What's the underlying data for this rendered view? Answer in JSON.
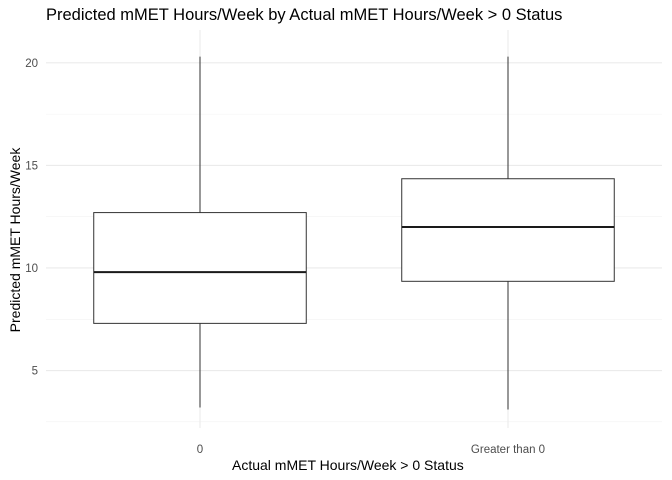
{
  "chart_data": {
    "type": "box",
    "title": "Predicted mMET Hours/Week by Actual mMET Hours/Week > 0 Status",
    "xlabel": "Actual mMET Hours/Week > 0 Status",
    "ylabel": "Predicted mMET Hours/Week",
    "categories": [
      "0",
      "Greater than 0"
    ],
    "y_ticks": [
      5,
      10,
      15,
      20
    ],
    "ylim": [
      2.2,
      21.6
    ],
    "grid": true,
    "boxes": [
      {
        "category": "0",
        "min": 3.2,
        "q1": 7.3,
        "median": 9.8,
        "q3": 12.7,
        "max": 20.3
      },
      {
        "category": "Greater than 0",
        "min": 3.1,
        "q1": 9.35,
        "median": 12.0,
        "q3": 14.35,
        "max": 20.3
      }
    ]
  }
}
